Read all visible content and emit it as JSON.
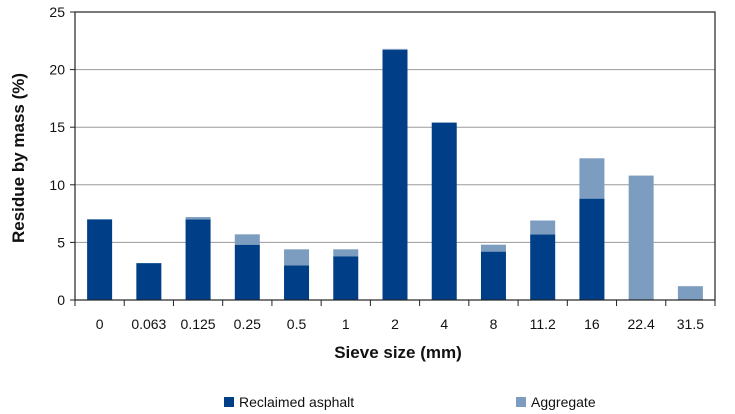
{
  "chart_data": {
    "type": "bar",
    "stacked": true,
    "xlabel": "Sieve size (mm)",
    "ylabel": "Residue by mass (%)",
    "ylim": [
      0,
      25
    ],
    "yticks": [
      0,
      5,
      10,
      15,
      20,
      25
    ],
    "grid": true,
    "legend": "bottom",
    "categories": [
      "0",
      "0.063",
      "0.125",
      "0.25",
      "0.5",
      "1",
      "2",
      "4",
      "8",
      "11.2",
      "16",
      "22.4",
      "31.5"
    ],
    "series": [
      {
        "name": "Reclaimed asphalt",
        "color": "#003f87",
        "values": [
          7.0,
          3.2,
          7.0,
          4.8,
          3.0,
          3.8,
          21.7,
          15.4,
          4.2,
          5.7,
          8.8,
          0,
          0
        ]
      },
      {
        "name": "Aggregate",
        "color": "#7d9dc0",
        "values": [
          0,
          0,
          0.2,
          0.9,
          1.4,
          0.6,
          0.1,
          0,
          0.6,
          1.2,
          3.5,
          10.8,
          1.2
        ]
      }
    ]
  }
}
